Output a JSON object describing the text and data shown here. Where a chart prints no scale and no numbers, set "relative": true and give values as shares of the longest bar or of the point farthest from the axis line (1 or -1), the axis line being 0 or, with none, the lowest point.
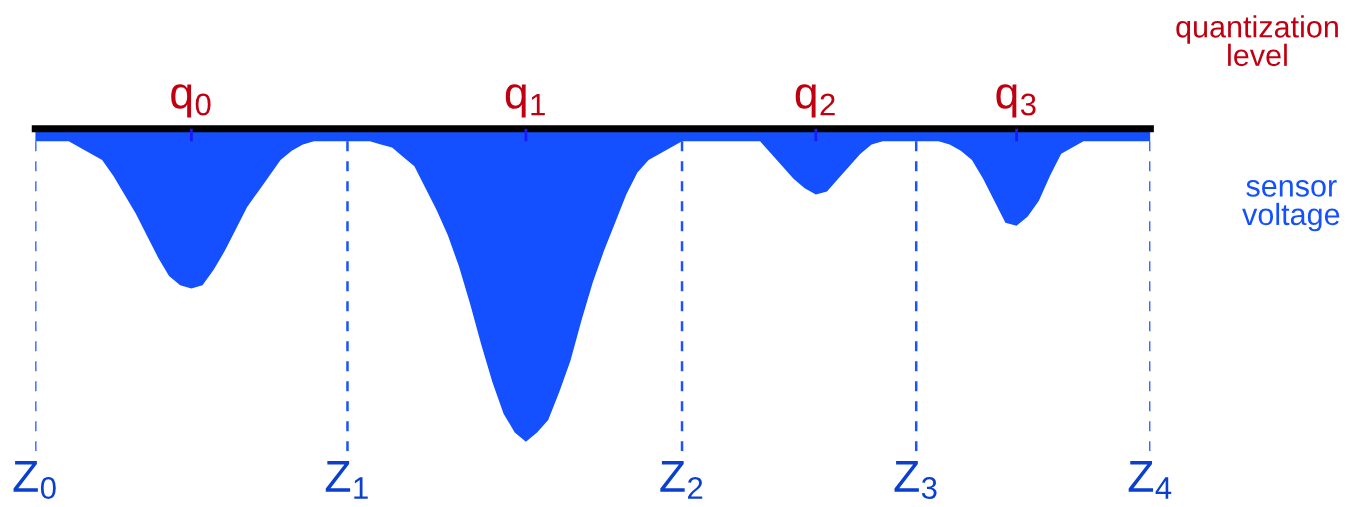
{
  "chart_data": {
    "type": "area",
    "relative": true,
    "grid": "x",
    "legend": false,
    "categories": [
      "Z$_{0}$",
      null,
      null,
      null,
      null,
      null,
      null,
      null,
      null,
      null,
      null,
      null,
      null,
      null,
      null,
      null,
      null,
      null,
      null,
      null,
      null,
      null,
      null,
      null,
      null,
      null,
      null,
      null,
      "Z$_{1}$",
      null,
      null,
      null,
      null,
      null,
      null,
      null,
      null,
      null,
      null,
      null,
      null,
      null,
      null,
      null,
      null,
      null,
      null,
      null,
      null,
      null,
      null,
      null,
      null,
      null,
      null,
      null,
      null,
      null,
      "Z$_{2}$",
      null,
      null,
      null,
      null,
      null,
      null,
      null,
      null,
      null,
      null,
      null,
      null,
      null,
      null,
      null,
      null,
      null,
      null,
      null,
      null,
      "Z$_{3}$",
      null,
      null,
      null,
      null,
      null,
      null,
      null,
      null,
      null,
      null,
      null,
      null,
      null,
      null,
      null,
      null,
      null,
      null,
      null,
      null,
      "Z$_{4}$"
    ],
    "annotations": [
      "q$_{0}$",
      "q$_{1}$",
      "q$_{2}$",
      "q$_{3}$",
      "quantization level"
    ],
    "series": [
      {
        "name": "sensor voltage",
        "color": "#1450ff",
        "values": [
          -0.04,
          -0.04,
          -0.04,
          -0.04,
          -0.06,
          -0.08,
          -0.1,
          -0.15,
          -0.21,
          -0.27,
          -0.34,
          -0.41,
          -0.47,
          -0.5,
          -0.51,
          -0.5,
          -0.45,
          -0.39,
          -0.32,
          -0.25,
          -0.2,
          -0.15,
          -0.1,
          -0.07,
          -0.05,
          -0.04,
          -0.04,
          -0.04,
          -0.04,
          -0.04,
          -0.04,
          -0.05,
          -0.06,
          -0.09,
          -0.12,
          -0.19,
          -0.26,
          -0.34,
          -0.44,
          -0.56,
          -0.69,
          -0.81,
          -0.91,
          -0.97,
          -1,
          -0.97,
          -0.93,
          -0.84,
          -0.74,
          -0.61,
          -0.49,
          -0.39,
          -0.3,
          -0.21,
          -0.14,
          -0.1,
          -0.08,
          -0.06,
          -0.04,
          -0.04,
          -0.04,
          -0.04,
          -0.04,
          -0.04,
          -0.04,
          -0.04,
          -0.08,
          -0.12,
          -0.16,
          -0.19,
          -0.21,
          -0.2,
          -0.16,
          -0.12,
          -0.08,
          -0.05,
          -0.04,
          -0.04,
          -0.04,
          -0.04,
          -0.04,
          -0.04,
          -0.05,
          -0.07,
          -0.1,
          -0.16,
          -0.23,
          -0.3,
          -0.31,
          -0.28,
          -0.23,
          -0.15,
          -0.08,
          -0.06,
          -0.04,
          -0.04,
          -0.04,
          -0.04,
          -0.04,
          -0.04,
          -0.04
        ]
      }
    ]
  }
}
